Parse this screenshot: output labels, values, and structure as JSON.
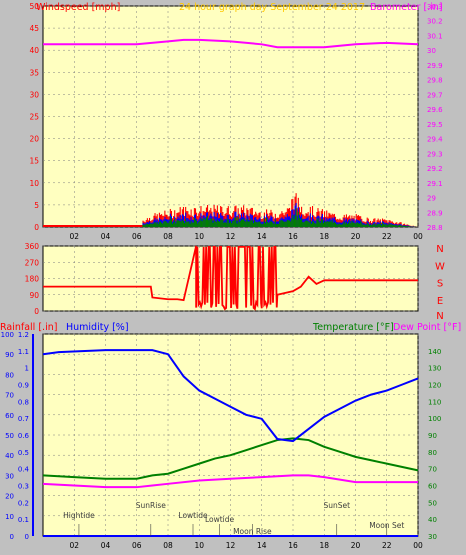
{
  "header": {
    "left_title": "Windspeed [mph]",
    "center_title": "24 hour graph day   September 24 2017",
    "right_title": "Barometer [.in]"
  },
  "colors": {
    "background": "#c0c0c0",
    "plot_background": "#ffffc0",
    "grid": "#7f7f7f",
    "wind_speed": "#ff0000",
    "wind_gust": "#0000ff",
    "wind_avg": "#008000",
    "barometer": "#ff00ff",
    "direction": "#ff0000",
    "humidity": "#0000ff",
    "temperature": "#008000",
    "dew_point": "#ff00ff",
    "rainfall": "#0000ff",
    "title": "#ffc800",
    "annotation": "#404040"
  },
  "chart_data": [
    {
      "type": "line",
      "name": "wind-barometer",
      "x_ticks": [
        "02",
        "04",
        "06",
        "08",
        "10",
        "12",
        "14",
        "16",
        "18",
        "20",
        "22",
        "00"
      ],
      "ylim": [
        0,
        50
      ],
      "y_ticks": [
        "0",
        "5",
        "10",
        "15",
        "20",
        "25",
        "30",
        "35",
        "40",
        "45",
        "50"
      ],
      "y2lim": [
        28.8,
        30.3
      ],
      "y2_ticks": [
        "28.8",
        "28.9",
        "29",
        "29.1",
        "29.2",
        "29.3",
        "29.4",
        "29.5",
        "29.6",
        "29.7",
        "29.8",
        "29.9",
        "30",
        "30.1",
        "30.2",
        "30.3"
      ],
      "barometer": {
        "x": [
          0,
          2,
          4,
          6,
          8,
          9,
          10,
          12,
          14,
          15,
          16,
          18,
          20,
          22,
          24
        ],
        "y": [
          30.04,
          30.04,
          30.04,
          30.04,
          30.06,
          30.07,
          30.07,
          30.06,
          30.04,
          30.02,
          30.02,
          30.02,
          30.04,
          30.05,
          30.04
        ]
      },
      "wind_baseline": {
        "x": [
          0,
          6.4
        ],
        "y": [
          0,
          0
        ]
      },
      "wind_speed_envelope": {
        "x": [
          6.4,
          7,
          8,
          9,
          10,
          11,
          12,
          13,
          14,
          15,
          15.8,
          16,
          16.5,
          17,
          18,
          19,
          20,
          21,
          22,
          23,
          24
        ],
        "y": [
          2,
          3,
          4,
          5,
          5,
          5,
          5,
          5,
          4,
          4,
          5,
          9,
          6,
          5,
          4,
          3,
          3,
          2,
          2,
          1,
          0
        ]
      }
    },
    {
      "type": "line",
      "name": "wind-direction",
      "ylim": [
        0,
        360
      ],
      "y_ticks": [
        "0",
        "90",
        "180",
        "270",
        "360"
      ],
      "compass": [
        "N",
        "W",
        "S",
        "E",
        "N"
      ],
      "direction": {
        "x": [
          0,
          6.9,
          7,
          8,
          8.6,
          9,
          9.8,
          14,
          15,
          16,
          16.5,
          17,
          17.5,
          18,
          24
        ],
        "y": [
          135,
          135,
          75,
          65,
          65,
          60,
          360,
          15,
          90,
          110,
          135,
          190,
          150,
          170,
          170
        ]
      }
    },
    {
      "type": "line",
      "name": "temp-humidity-rain",
      "title_left_rain": "Rainfall [.in]",
      "title_left_hum": "Humidity [%]",
      "title_right_temp": "Temperature [°F]",
      "title_right_dew": "Dew Point [°F]",
      "rain_lim": [
        0,
        1.2
      ],
      "rain_ticks": [
        "0",
        "0.1",
        "0.2",
        "0.3",
        "0.4",
        "0.5",
        "0.6",
        "0.7",
        "0.8",
        "0.9",
        "1",
        "1.1",
        "1.2"
      ],
      "hum_lim": [
        0,
        100
      ],
      "hum_ticks": [
        "0",
        "10",
        "20",
        "30",
        "40",
        "50",
        "60",
        "70",
        "80",
        "90",
        "100"
      ],
      "temp_lim": [
        30,
        150
      ],
      "temp_ticks": [
        "30",
        "40",
        "50",
        "60",
        "70",
        "80",
        "90",
        "100",
        "110",
        "120",
        "130",
        "140"
      ],
      "x_ticks": [
        "02",
        "04",
        "06",
        "08",
        "10",
        "12",
        "14",
        "16",
        "18",
        "20",
        "22",
        "00"
      ],
      "humidity": {
        "x": [
          0,
          1,
          4,
          7,
          8,
          9,
          10,
          11,
          12,
          13,
          14,
          15,
          16,
          17,
          18,
          19,
          20,
          21,
          22,
          23,
          24
        ],
        "y": [
          90,
          91,
          92,
          92,
          90,
          79,
          72,
          68,
          64,
          60,
          58,
          48,
          47,
          53,
          59,
          63,
          67,
          70,
          72,
          75,
          78
        ]
      },
      "temperature": {
        "x": [
          0,
          2,
          4,
          6,
          7,
          8,
          9,
          10,
          11,
          12,
          13,
          14,
          15,
          16,
          17,
          18,
          19,
          20,
          21,
          22,
          23,
          24
        ],
        "y": [
          66,
          65,
          64,
          64,
          66,
          67,
          70,
          73,
          76,
          78,
          81,
          84,
          87,
          88,
          87,
          83,
          80,
          77,
          75,
          73,
          71,
          69
        ]
      },
      "dew_point": {
        "x": [
          0,
          2,
          4,
          6,
          7,
          8,
          10,
          12,
          14,
          16,
          17,
          18,
          20,
          22,
          24
        ],
        "y": [
          61,
          60,
          59,
          59,
          60,
          61,
          63,
          64,
          65,
          66,
          66,
          65,
          62,
          62,
          62
        ]
      },
      "rainfall": {
        "x": [
          0,
          24
        ],
        "y": [
          0,
          0
        ]
      },
      "events": [
        {
          "label": "Hightide",
          "x": 2.3,
          "row": 0
        },
        {
          "label": "SunRise",
          "x": 6.9,
          "row": 1
        },
        {
          "label": "Lowtide",
          "x": 9.6,
          "row": 0
        },
        {
          "label": "Moon Rise",
          "x": 13.4,
          "row": 2
        },
        {
          "label": "Lowtide",
          "x": 11.3,
          "row": 3
        },
        {
          "label": "SunSet",
          "x": 18.8,
          "row": 1
        },
        {
          "label": "Moon Set",
          "x": 22.0,
          "row": 4
        }
      ]
    }
  ]
}
